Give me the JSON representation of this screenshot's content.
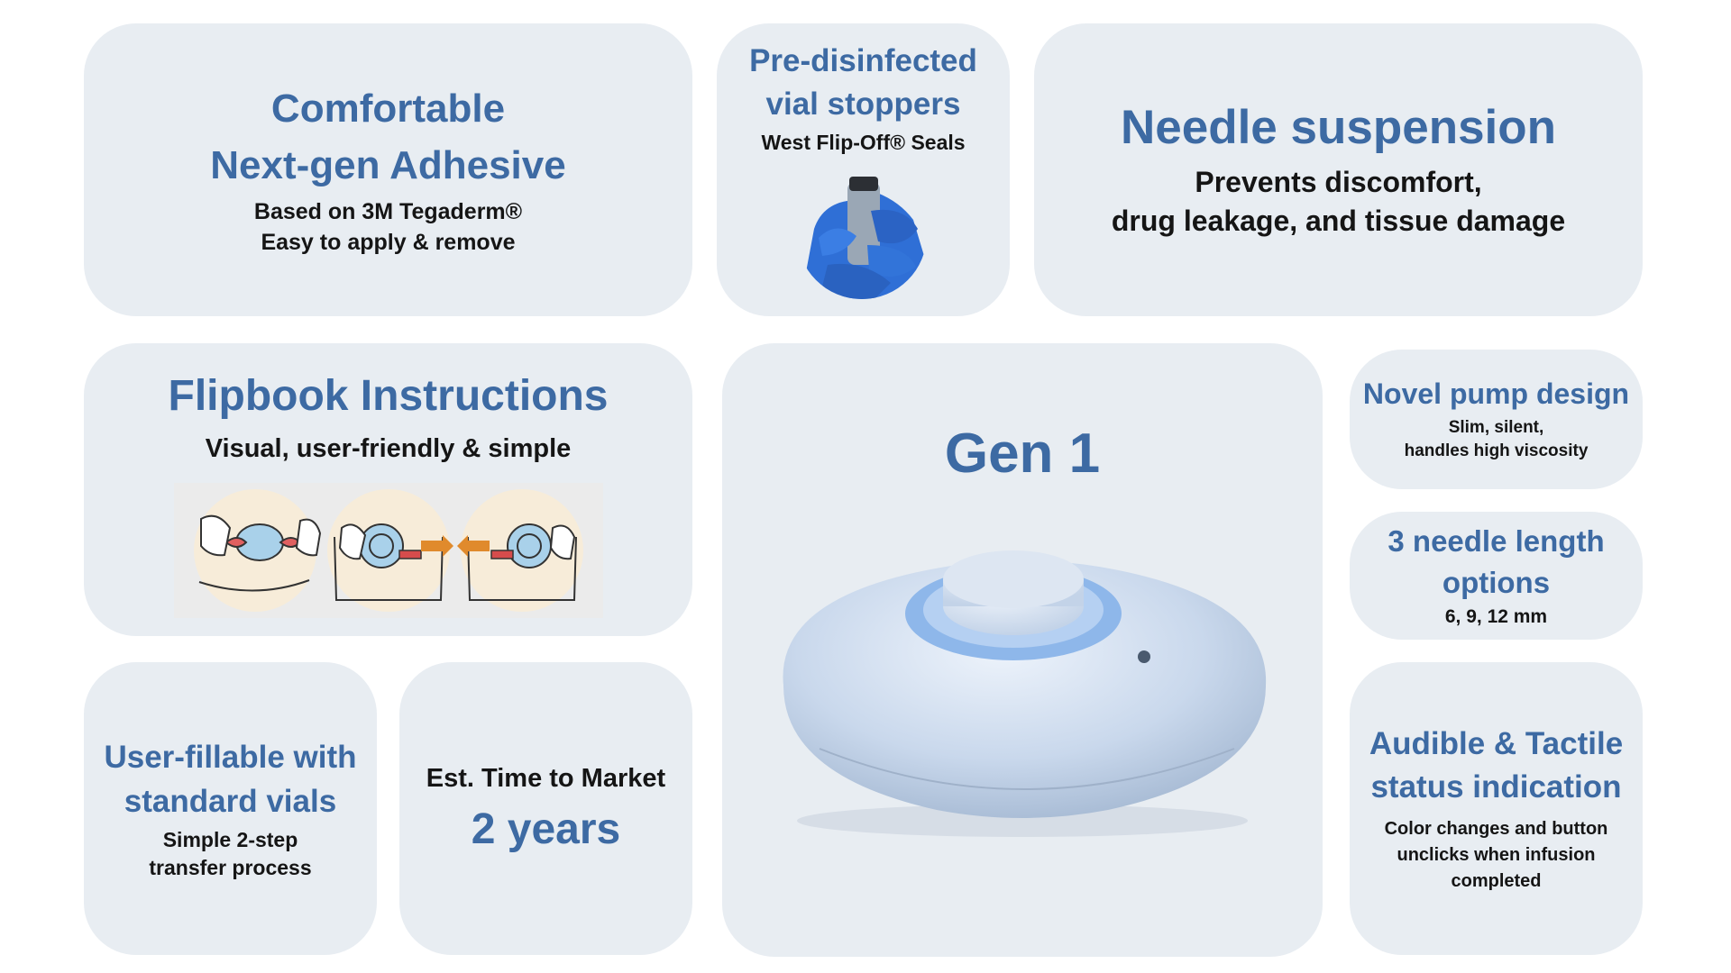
{
  "colors": {
    "card_bg": "#e8edf2",
    "heading": "#3d6aa3",
    "body_text": "#151515"
  },
  "cards": {
    "adhesive": {
      "title": "Comfortable\nNext-gen Adhesive",
      "subtitle": "Based on 3M Tegaderm®\nEasy to apply & remove"
    },
    "vial_stoppers": {
      "title": "Pre-disinfected\nvial stoppers",
      "subtitle": "West Flip-Off® Seals",
      "image": "gloved-hand-holding-vial"
    },
    "needle_suspension": {
      "title": "Needle suspension",
      "subtitle": "Prevents discomfort,\ndrug leakage, and tissue damage"
    },
    "flipbook": {
      "title": "Flipbook Instructions",
      "subtitle": "Visual, user-friendly & simple",
      "images": [
        "apply-step-illustration",
        "pull-tab-right-illustration",
        "pull-tab-left-illustration"
      ]
    },
    "gen1": {
      "title": "Gen 1",
      "image": "wearable-pump-device"
    },
    "pump_design": {
      "title": "Novel pump design",
      "subtitle": "Slim, silent,\nhandles high viscosity"
    },
    "needle_length": {
      "title": "3 needle length\noptions",
      "subtitle": "6, 9, 12 mm"
    },
    "user_fillable": {
      "title": "User-fillable with\nstandard vials",
      "subtitle": "Simple 2-step\ntransfer process"
    },
    "time_to_market": {
      "label": "Est. Time to Market",
      "value": "2 years"
    },
    "status_indication": {
      "title": "Audible & Tactile\nstatus indication",
      "subtitle": "Color changes and button\nunclicks when infusion\ncompleted"
    }
  }
}
